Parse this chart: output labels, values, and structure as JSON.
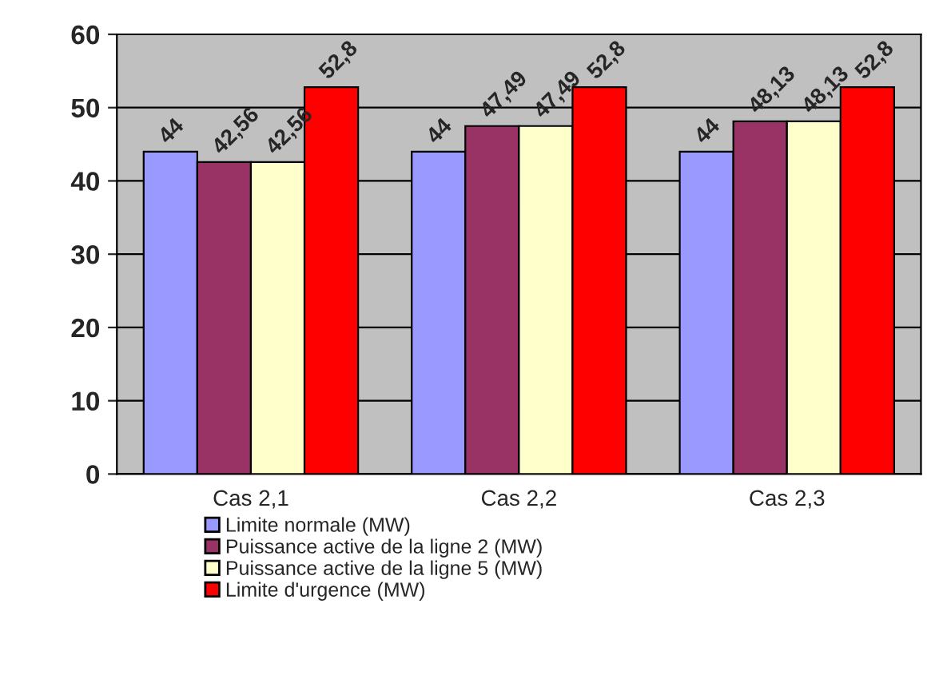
{
  "chart_data": {
    "type": "bar",
    "categories": [
      "Cas 2,1",
      "Cas 2,2",
      "Cas 2,3"
    ],
    "series": [
      {
        "name": "Limite normale (MW)",
        "color": "#9999ff",
        "values": [
          44,
          44,
          44
        ],
        "value_labels": [
          "44",
          "44",
          "44"
        ]
      },
      {
        "name": "Puissance active de la ligne 2 (MW)",
        "color": "#993366",
        "values": [
          42.56,
          47.49,
          48.13
        ],
        "value_labels": [
          "42,56",
          "47,49",
          "48,13"
        ]
      },
      {
        "name": "Puissance active de la ligne 5 (MW)",
        "color": "#ffffcc",
        "values": [
          42.56,
          47.49,
          48.13
        ],
        "value_labels": [
          "42,56",
          "47,49",
          "48,13"
        ]
      },
      {
        "name": "Limite d'urgence (MW)",
        "color": "#ff0000",
        "values": [
          52.8,
          52.8,
          52.8
        ],
        "value_labels": [
          "52,8",
          "52,8",
          "52,8"
        ]
      }
    ],
    "ylim": [
      0,
      60
    ],
    "yticks": [
      0,
      10,
      20,
      30,
      40,
      50,
      60
    ],
    "grid": "y",
    "legend": "bottom"
  }
}
